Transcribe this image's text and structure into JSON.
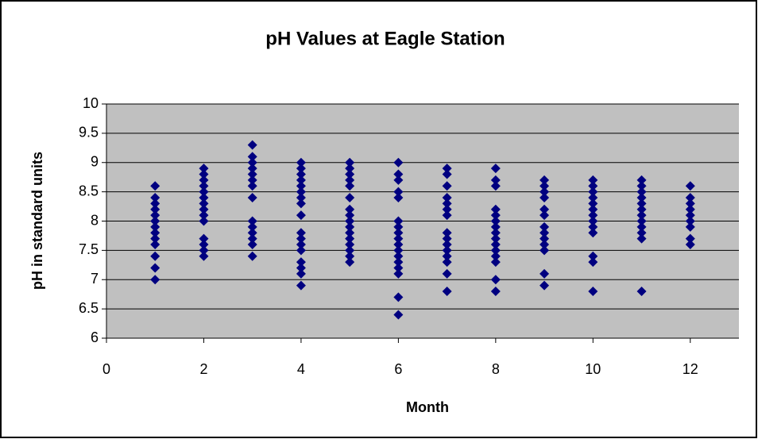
{
  "chart_data": {
    "type": "scatter",
    "title": "pH Values at Eagle Station",
    "xlabel": "Month",
    "ylabel": "pH in standard units",
    "color": "#000080",
    "plot_background": "#c0c0c0",
    "grid": true,
    "xlim": [
      0,
      13
    ],
    "xticks": [
      0,
      2,
      4,
      6,
      8,
      10,
      12
    ],
    "ylim": [
      6,
      10
    ],
    "yticks": [
      6,
      6.5,
      7,
      7.5,
      8,
      8.5,
      9,
      9.5,
      10
    ],
    "x": [
      1,
      1,
      1,
      1,
      1,
      1,
      1,
      1,
      1,
      1,
      1,
      1,
      1,
      2,
      2,
      2,
      2,
      2,
      2,
      2,
      2,
      2,
      2,
      2,
      2,
      2,
      2,
      3,
      3,
      3,
      3,
      3,
      3,
      3,
      3,
      3,
      3,
      3,
      3,
      3,
      3,
      4,
      4,
      4,
      4,
      4,
      4,
      4,
      4,
      4,
      4,
      4,
      4,
      4,
      4,
      4,
      4,
      4,
      5,
      5,
      5,
      5,
      5,
      5,
      5,
      5,
      5,
      5,
      5,
      5,
      5,
      5,
      5,
      5,
      6,
      6,
      6,
      6,
      6,
      6,
      6,
      6,
      6,
      6,
      6,
      6,
      6,
      6,
      6,
      6,
      6,
      7,
      7,
      7,
      7,
      7,
      7,
      7,
      7,
      7,
      7,
      7,
      7,
      7,
      7,
      7,
      8,
      8,
      8,
      8,
      8,
      8,
      8,
      8,
      8,
      8,
      8,
      8,
      8,
      8,
      8,
      9,
      9,
      9,
      9,
      9,
      9,
      9,
      9,
      9,
      9,
      9,
      9,
      9,
      10,
      10,
      10,
      10,
      10,
      10,
      10,
      10,
      10,
      10,
      10,
      10,
      10,
      11,
      11,
      11,
      11,
      11,
      11,
      11,
      11,
      11,
      11,
      11,
      11,
      12,
      12,
      12,
      12,
      12,
      12,
      12,
      12,
      12
    ],
    "values": [
      8.6,
      8.4,
      8.3,
      8.2,
      8.1,
      8.0,
      7.9,
      7.8,
      7.7,
      7.6,
      7.4,
      7.2,
      7.0,
      8.9,
      8.8,
      8.7,
      8.6,
      8.5,
      8.4,
      8.3,
      8.2,
      8.1,
      8.0,
      7.7,
      7.6,
      7.5,
      7.4,
      9.3,
      9.1,
      9.0,
      8.9,
      8.8,
      8.7,
      8.6,
      8.4,
      8.0,
      7.9,
      7.8,
      7.7,
      7.6,
      7.4,
      9.0,
      8.9,
      8.8,
      8.7,
      8.6,
      8.5,
      8.4,
      8.3,
      8.1,
      7.8,
      7.7,
      7.6,
      7.5,
      7.3,
      7.2,
      7.1,
      6.9,
      9.0,
      8.9,
      8.8,
      8.7,
      8.6,
      8.4,
      8.2,
      8.1,
      8.0,
      7.9,
      7.8,
      7.7,
      7.6,
      7.5,
      7.4,
      7.3,
      9.0,
      8.8,
      8.7,
      8.5,
      8.4,
      8.0,
      7.9,
      7.8,
      7.7,
      7.6,
      7.5,
      7.4,
      7.3,
      7.2,
      7.1,
      6.7,
      6.4,
      8.9,
      8.8,
      8.6,
      8.4,
      8.3,
      8.2,
      8.1,
      7.8,
      7.7,
      7.6,
      7.5,
      7.4,
      7.3,
      7.1,
      6.8,
      8.9,
      8.7,
      8.6,
      8.2,
      8.1,
      8.0,
      7.9,
      7.8,
      7.7,
      7.6,
      7.5,
      7.4,
      7.3,
      7.0,
      6.8,
      8.7,
      8.6,
      8.5,
      8.4,
      8.2,
      8.1,
      7.9,
      7.8,
      7.7,
      7.6,
      7.5,
      7.1,
      6.9,
      8.7,
      8.6,
      8.5,
      8.4,
      8.3,
      8.2,
      8.1,
      8.0,
      7.9,
      7.8,
      7.4,
      7.3,
      6.8,
      8.7,
      8.6,
      8.5,
      8.4,
      8.3,
      8.2,
      8.1,
      8.0,
      7.9,
      7.8,
      7.7,
      6.8,
      8.6,
      8.4,
      8.3,
      8.2,
      8.1,
      8.0,
      7.9,
      7.7,
      7.6
    ]
  }
}
